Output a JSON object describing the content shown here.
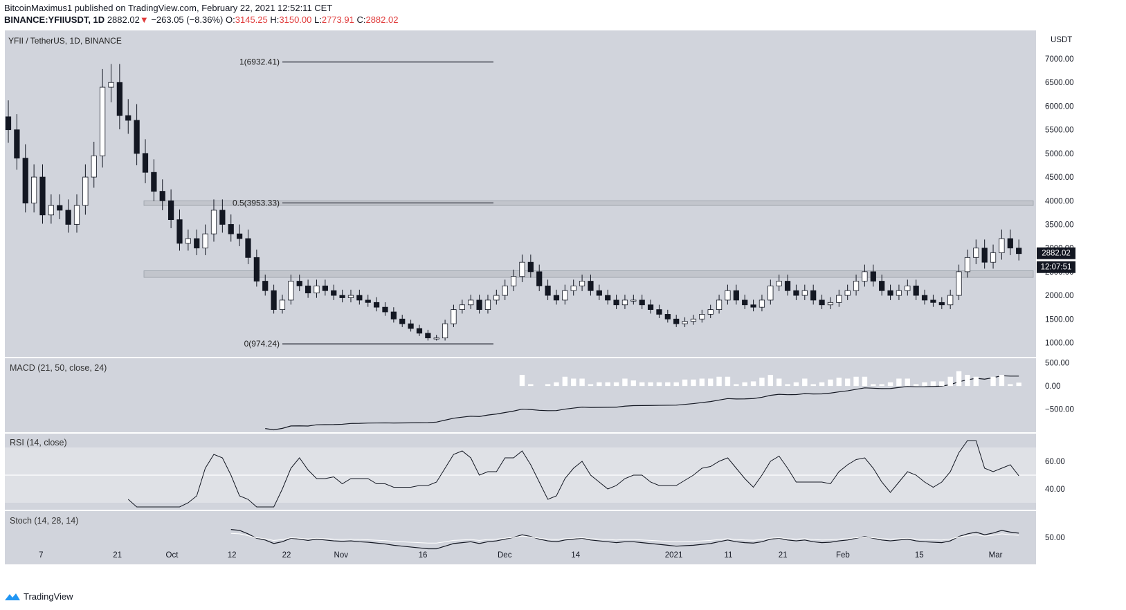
{
  "header": {
    "line1": "BitcoinMaximus1 published on TradingView.com, February 22, 2021 12:52:11 CET",
    "symbol": "BINANCE:YFIIUSDT, 1D",
    "last": "2882.02",
    "change": "−263.05 (−8.36%)",
    "o_label": "O:",
    "o": "3145.25",
    "h_label": "H:",
    "h": "3150.00",
    "l_label": "L:",
    "l": "2773.91",
    "c_label": "C:",
    "c": "2882.02",
    "arrow": "▼"
  },
  "colors": {
    "background": "#d1d4dc",
    "rsi_band": "#dfe1e6",
    "up_candle": "#ffffff",
    "down_candle": "#131722",
    "price_label_bg": "#131722",
    "negative": "#e03b3b"
  },
  "logo_text": "TradingView",
  "price_label": "2882.02",
  "countdown_label": "12:07:51",
  "chart_data": {
    "type": "candlestick",
    "title": "YFII / TetherUS, 1D, BINANCE",
    "y_unit": "USDT",
    "y_ticks": [
      1000,
      1500,
      2000,
      2500,
      3000,
      3500,
      4000,
      4500,
      5000,
      5500,
      6000,
      6500,
      7000
    ],
    "y_tick_labels": [
      "1000.00",
      "1500.00",
      "2000.00",
      "2500.00",
      "3000.00",
      "3500.00",
      "4000.00",
      "4500.00",
      "5000.00",
      "5500.00",
      "6000.00",
      "6500.00",
      "7000.00"
    ],
    "y_range": [
      700,
      7600
    ],
    "x_ticks": [
      "7",
      "21",
      "Oct",
      "12",
      "22",
      "Nov",
      "16",
      "Dec",
      "14",
      "2021",
      "11",
      "21",
      "Feb",
      "15",
      "Mar"
    ],
    "x_tick_days": [
      6,
      20,
      30,
      41,
      51,
      61,
      76,
      91,
      104,
      122,
      132,
      142,
      153,
      167,
      181
    ],
    "x_range_days": [
      0,
      186
    ],
    "first_day": "2020-09-01",
    "fib_levels": [
      {
        "label": "1(6932.41)",
        "value": 6932.41
      },
      {
        "label": "0.5(3953.33)",
        "value": 3953.33
      },
      {
        "label": "0(974.24)",
        "value": 974.24
      }
    ],
    "zones": [
      {
        "from": 3900,
        "to": 4000
      },
      {
        "from": 2380,
        "to": 2520
      }
    ],
    "close_anchors": [
      [
        0,
        5500
      ],
      [
        1,
        4900
      ],
      [
        2,
        3950
      ],
      [
        3,
        4500
      ],
      [
        4,
        3700
      ],
      [
        5,
        3900
      ],
      [
        6,
        3800
      ],
      [
        7,
        3500
      ],
      [
        8,
        3900
      ],
      [
        9,
        4500
      ],
      [
        10,
        4950
      ],
      [
        11,
        6400
      ],
      [
        12,
        6500
      ],
      [
        13,
        5800
      ],
      [
        14,
        5700
      ],
      [
        15,
        5000
      ],
      [
        16,
        4600
      ],
      [
        17,
        4200
      ],
      [
        18,
        4000
      ],
      [
        19,
        3600
      ],
      [
        20,
        3100
      ],
      [
        21,
        3200
      ],
      [
        22,
        3000
      ],
      [
        23,
        3300
      ],
      [
        24,
        3800
      ],
      [
        25,
        3500
      ],
      [
        26,
        3300
      ],
      [
        27,
        3200
      ],
      [
        28,
        2800
      ],
      [
        29,
        2300
      ],
      [
        30,
        2100
      ],
      [
        31,
        1700
      ],
      [
        32,
        1900
      ],
      [
        33,
        2300
      ],
      [
        34,
        2200
      ],
      [
        35,
        2050
      ],
      [
        36,
        2200
      ],
      [
        37,
        2100
      ],
      [
        38,
        2000
      ],
      [
        39,
        1950
      ],
      [
        40,
        2000
      ],
      [
        41,
        1900
      ],
      [
        42,
        1850
      ],
      [
        43,
        1750
      ],
      [
        44,
        1650
      ],
      [
        45,
        1500
      ],
      [
        46,
        1400
      ],
      [
        47,
        1300
      ],
      [
        48,
        1200
      ],
      [
        49,
        1100
      ],
      [
        50,
        1100
      ],
      [
        51,
        1400
      ],
      [
        52,
        1700
      ],
      [
        53,
        1800
      ],
      [
        54,
        1900
      ],
      [
        55,
        1700
      ],
      [
        56,
        1900
      ],
      [
        57,
        2000
      ],
      [
        58,
        2200
      ],
      [
        59,
        2400
      ],
      [
        60,
        2700
      ],
      [
        61,
        2500
      ],
      [
        62,
        2200
      ],
      [
        63,
        2000
      ],
      [
        64,
        1900
      ],
      [
        65,
        2100
      ],
      [
        66,
        2200
      ],
      [
        67,
        2300
      ],
      [
        68,
        2100
      ],
      [
        69,
        2000
      ],
      [
        70,
        1900
      ],
      [
        71,
        1800
      ],
      [
        72,
        1900
      ],
      [
        73,
        1900
      ],
      [
        74,
        1800
      ],
      [
        75,
        1700
      ],
      [
        76,
        1600
      ],
      [
        77,
        1500
      ],
      [
        78,
        1400
      ],
      [
        79,
        1450
      ],
      [
        80,
        1500
      ],
      [
        81,
        1600
      ],
      [
        82,
        1700
      ],
      [
        83,
        1900
      ],
      [
        84,
        2100
      ],
      [
        85,
        1900
      ],
      [
        86,
        1800
      ],
      [
        87,
        1750
      ],
      [
        88,
        1900
      ],
      [
        89,
        2200
      ],
      [
        90,
        2300
      ],
      [
        91,
        2100
      ],
      [
        92,
        2000
      ],
      [
        93,
        2100
      ],
      [
        94,
        1900
      ],
      [
        95,
        1800
      ],
      [
        96,
        1850
      ],
      [
        97,
        2000
      ],
      [
        98,
        2100
      ],
      [
        99,
        2300
      ],
      [
        100,
        2500
      ],
      [
        101,
        2300
      ],
      [
        102,
        2100
      ],
      [
        103,
        2000
      ],
      [
        104,
        2100
      ],
      [
        105,
        2200
      ],
      [
        106,
        2000
      ],
      [
        107,
        1900
      ],
      [
        108,
        1850
      ],
      [
        109,
        1800
      ],
      [
        110,
        2000
      ],
      [
        111,
        2500
      ],
      [
        112,
        2800
      ],
      [
        113,
        3000
      ],
      [
        114,
        2700
      ],
      [
        115,
        2900
      ],
      [
        116,
        3200
      ],
      [
        117,
        3000
      ],
      [
        118,
        2882
      ]
    ],
    "macd": {
      "label": "MACD (21, 50, close, 24)",
      "y_ticks": [
        "500.00",
        "0.00",
        "−500.00"
      ],
      "y_range": [
        -1000,
        600
      ]
    },
    "rsi": {
      "label": "RSI (14, close)",
      "y_ticks": [
        "60.00",
        "40.00"
      ],
      "y_range": [
        25,
        80
      ],
      "band": [
        30,
        70
      ],
      "midline": 50
    },
    "stoch": {
      "label": "Stoch (14, 28, 14)",
      "y_ticks": [
        "50.00"
      ],
      "y_range": [
        0,
        100
      ]
    }
  }
}
